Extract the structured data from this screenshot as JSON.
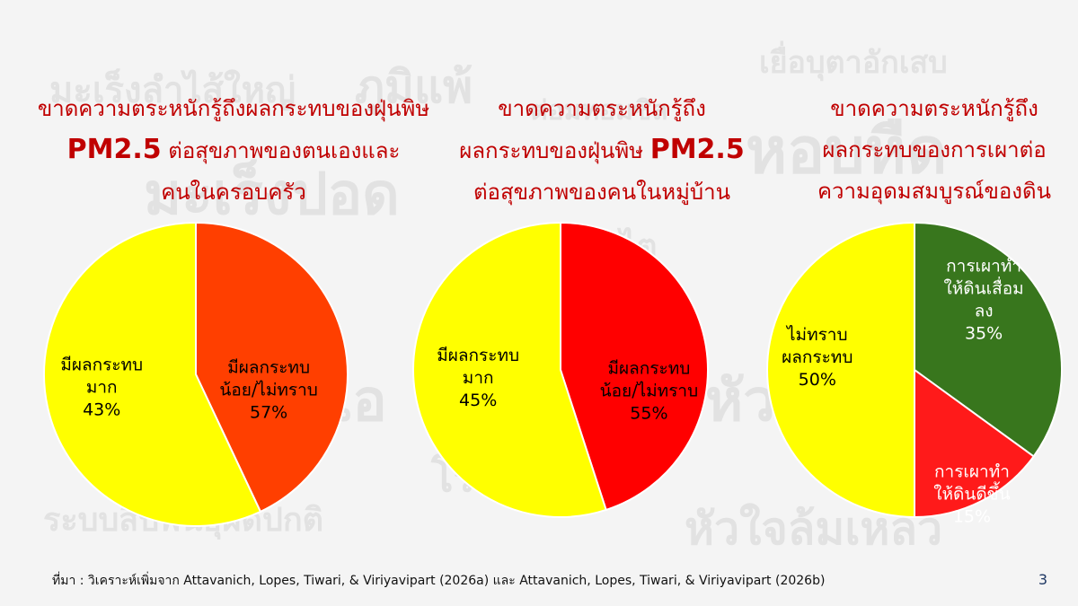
{
  "background_words": [
    "มะเร็งลำไส้ใหญ่",
    "ภูมิแพ้",
    "เยื่อบุตาอักเสบ",
    "มะเร็งปอด",
    "ต่อมทอมซิล",
    "หอบหืด",
    "ไอ",
    "ไต",
    "ระบบสืบพันธุ์ผิดปกติ",
    "หัวใจล้มเหลว",
    "โรค",
    "หัวใจ"
  ],
  "chart_data": [
    {
      "type": "pie",
      "title_lines": [
        "ขาดความตระหนักรู้ถึงผลกระทบของฝุ่นพิษ",
        "PM2.5 ต่อสุขภาพของตนเองและ",
        "คนในครอบครัว"
      ],
      "slices": [
        {
          "label_lines": [
            "มีผลกระทบ",
            "มาก"
          ],
          "percent_label": "43%",
          "value": 43,
          "color": "#ff3f00"
        },
        {
          "label_lines": [
            "มีผลกระทบ",
            "น้อย/ไม่ทราบ"
          ],
          "percent_label": "57%",
          "value": 57,
          "color": "#ffff00"
        }
      ]
    },
    {
      "type": "pie",
      "title_lines": [
        "ขาดความตระหนักรู้ถึง",
        "ผลกระทบของฝุ่นพิษ PM2.5",
        "ต่อสุขภาพของคนในหมู่บ้าน"
      ],
      "slices": [
        {
          "label_lines": [
            "มีผลกระทบ",
            "มาก"
          ],
          "percent_label": "45%",
          "value": 45,
          "color": "#ff0000"
        },
        {
          "label_lines": [
            "มีผลกระทบ",
            "น้อย/ไม่ทราบ"
          ],
          "percent_label": "55%",
          "value": 55,
          "color": "#ffff00"
        }
      ]
    },
    {
      "type": "pie",
      "title_lines": [
        "ขาดความตระหนักรู้ถึง",
        "ผลกระทบของการเผาต่อ",
        "ความอุดมสมบูรณ์ของดิน"
      ],
      "slices": [
        {
          "label_lines": [
            "การเผาทำ",
            "ให้ดินเสื่อม",
            "ลง"
          ],
          "percent_label": "35%",
          "value": 35,
          "color": "#38761d"
        },
        {
          "label_lines": [
            "การเผาทำ",
            "ให้ดินดีขึ้น"
          ],
          "percent_label": "15%",
          "value": 15,
          "color": "#ff1a1a"
        },
        {
          "label_lines": [
            "ไม่ทราบ",
            "ผลกระทบ"
          ],
          "percent_label": "50%",
          "value": 50,
          "color": "#ffff00"
        }
      ]
    }
  ],
  "footer": {
    "source": "ที่มา : วิเคราะห์เพิ่มจาก Attavanich, Lopes, Tiwari, & Viriyavipart (2026a) และ Attavanich, Lopes, Tiwari, & Viriyavipart (2026b)",
    "page_number": "3"
  }
}
